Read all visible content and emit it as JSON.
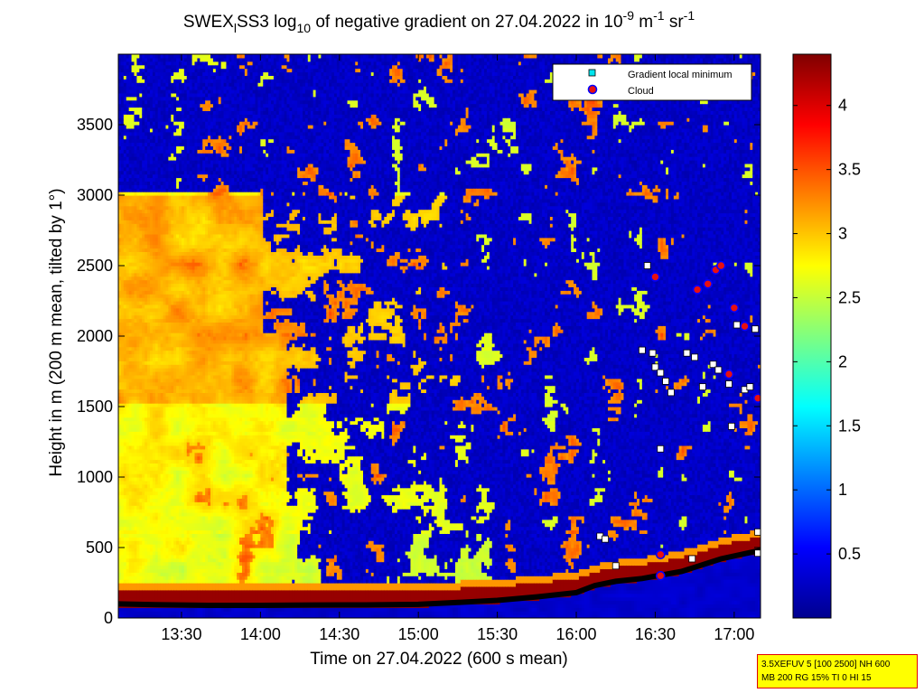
{
  "chart_data": {
    "type": "heatmap",
    "title": {
      "prefix": "SWEX",
      "sub1": "l",
      "part2": "SS3 log",
      "sub2": "10",
      "part3": " of negative gradient on 27.04.2022 in 10",
      "sup1": "-9",
      "part4": " m",
      "sup2": "-1",
      "part5": " sr",
      "sup3": "-1"
    },
    "xlabel": "Time on 27.04.2022 (600 s mean)",
    "ylabel": "Height in m (200 m mean, tilted by 1°)",
    "x_axis": {
      "start_min": 786,
      "end_min": 1030,
      "ticks": [
        {
          "min": 810,
          "label": "13:30"
        },
        {
          "min": 840,
          "label": "14:00"
        },
        {
          "min": 870,
          "label": "14:30"
        },
        {
          "min": 900,
          "label": "15:00"
        },
        {
          "min": 930,
          "label": "15:30"
        },
        {
          "min": 960,
          "label": "16:00"
        },
        {
          "min": 990,
          "label": "16:30"
        },
        {
          "min": 1020,
          "label": "17:00"
        }
      ]
    },
    "y_axis": {
      "ylim": [
        0,
        4000
      ],
      "ticks": [
        0,
        500,
        1000,
        1500,
        2000,
        2500,
        3000,
        3500
      ]
    },
    "colorbar": {
      "range": [
        0,
        4.4
      ],
      "ticks": [
        0.5,
        1,
        1.5,
        2,
        2.5,
        3,
        3.5,
        4
      ],
      "tick_labels": [
        "0.5",
        "1",
        "1.5",
        "2",
        "2.5",
        "3",
        "3.5",
        "4"
      ],
      "colormap": "jet"
    },
    "legend": {
      "placement": "top-right",
      "entries": [
        {
          "label": "Gradient local minimum",
          "marker": "square",
          "color": "#00e5ee"
        },
        {
          "label": "Cloud",
          "marker": "circle",
          "color": "#e81010",
          "edge": "#0000ff"
        }
      ]
    },
    "cloud_base_line": [
      [
        786,
        100
      ],
      [
        800,
        95
      ],
      [
        820,
        90
      ],
      [
        840,
        90
      ],
      [
        860,
        92
      ],
      [
        880,
        93
      ],
      [
        900,
        97
      ],
      [
        915,
        110
      ],
      [
        930,
        125
      ],
      [
        945,
        150
      ],
      [
        960,
        180
      ],
      [
        967,
        230
      ],
      [
        975,
        260
      ],
      [
        985,
        280
      ],
      [
        1000,
        330
      ],
      [
        1015,
        420
      ],
      [
        1030,
        480
      ]
    ],
    "gradient_minima": [
      [
        969,
        580
      ],
      [
        971,
        560
      ],
      [
        975,
        370
      ],
      [
        985,
        1900
      ],
      [
        989,
        1880
      ],
      [
        990,
        1780
      ],
      [
        992,
        1740
      ],
      [
        994,
        1680
      ],
      [
        996,
        1600
      ],
      [
        992,
        1200
      ],
      [
        987,
        2500
      ],
      [
        1002,
        1880
      ],
      [
        1005,
        1850
      ],
      [
        1008,
        1640
      ],
      [
        1012,
        1800
      ],
      [
        1014,
        1760
      ],
      [
        1018,
        1660
      ],
      [
        1019,
        1360
      ],
      [
        1021,
        2080
      ],
      [
        1024,
        1620
      ],
      [
        1028,
        2050
      ],
      [
        1029,
        610
      ],
      [
        1029,
        460
      ],
      [
        1026,
        1640
      ],
      [
        1004,
        420
      ]
    ],
    "cloud_points": [
      [
        990,
        2420
      ],
      [
        1006,
        2330
      ],
      [
        1010,
        2370
      ],
      [
        1013,
        2470
      ],
      [
        1015,
        2500
      ],
      [
        1020,
        2200
      ],
      [
        1024,
        2070
      ],
      [
        1018,
        1730
      ],
      [
        1029,
        1560
      ],
      [
        992,
        450
      ],
      [
        992,
        300
      ]
    ]
  },
  "settings": {
    "line1": "3.5XEFUV 5 [100 2500] NH 600",
    "line2": "MB 200 RG 15% TI 0 HI 15"
  }
}
